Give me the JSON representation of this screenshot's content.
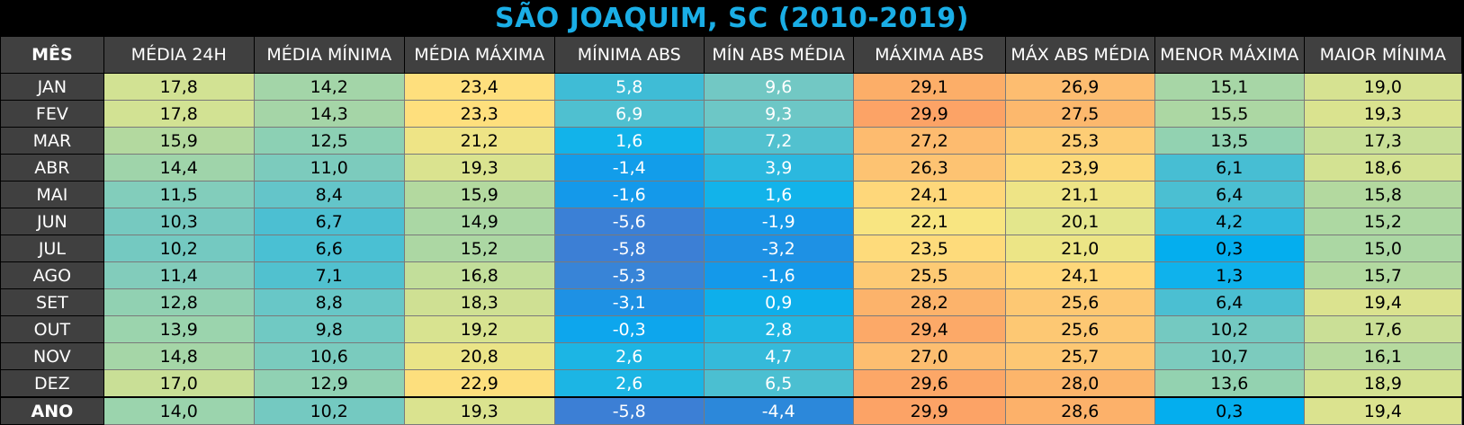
{
  "chart_data": {
    "type": "table",
    "title": "SÃO JOAQUIM, SC (2010-2019)",
    "columns": [
      "MÊS",
      "MÉDIA 24H",
      "MÉDIA MÍNIMA",
      "MÉDIA MÁXIMA",
      "MÍNIMA ABS",
      "MÍN ABS MÉDIA",
      "MÁXIMA ABS",
      "MÁX ABS MÉDIA",
      "MENOR MÁXIMA",
      "MAIOR MÍNIMA"
    ],
    "rows": [
      {
        "mes": "JAN",
        "values": [
          "17,8",
          "14,2",
          "23,4",
          "5,8",
          "9,6",
          "29,1",
          "26,9",
          "15,1",
          "19,0"
        ],
        "colors": [
          "#d2e293",
          "#a3d5a8",
          "#fedf7d",
          "#3fbcd6",
          "#72c8c4",
          "#fcae68",
          "#fdbd70",
          "#a7d6a6",
          "#d6e291"
        ]
      },
      {
        "mes": "FEV",
        "values": [
          "17,8",
          "14,3",
          "23,3",
          "6,9",
          "9,3",
          "29,9",
          "27,5",
          "15,5",
          "19,3"
        ],
        "colors": [
          "#d2e293",
          "#a5d5a7",
          "#fedf7d",
          "#4fc0d0",
          "#6dc7c6",
          "#fca366",
          "#fcb86d",
          "#acd7a3",
          "#dae38f"
        ]
      },
      {
        "mes": "MAR",
        "values": [
          "15,9",
          "12,5",
          "21,2",
          "1,6",
          "7,2",
          "27,2",
          "25,3",
          "13,5",
          "17,3"
        ],
        "colors": [
          "#b3d99f",
          "#8cd0b4",
          "#eee486",
          "#12b3ea",
          "#52c1cf",
          "#fdbb6f",
          "#fdcd75",
          "#92d2b1",
          "#c8df97"
        ]
      },
      {
        "mes": "ABR",
        "values": [
          "14,4",
          "11,0",
          "19,3",
          "-1,4",
          "3,9",
          "26,3",
          "23,9",
          "6,1",
          "18,6"
        ],
        "colors": [
          "#9fd4aa",
          "#7ccbbd",
          "#dae38f",
          "#129dea",
          "#2bb8df",
          "#fdc372",
          "#fcd97a",
          "#47bed3",
          "#d3e292"
        ]
      },
      {
        "mes": "MAI",
        "values": [
          "11,5",
          "8,4",
          "15,9",
          "-1,6",
          "1,6",
          "24,1",
          "21,1",
          "6,4",
          "15,8"
        ],
        "colors": [
          "#82cdbb",
          "#64c5c9",
          "#b3d99f",
          "#1499ea",
          "#12b3ea",
          "#fed77a",
          "#eee486",
          "#4bbfd2",
          "#b3d99f"
        ]
      },
      {
        "mes": "JUN",
        "values": [
          "10,3",
          "6,7",
          "14,9",
          "-5,6",
          "-1,9",
          "22,1",
          "20,1",
          "4,2",
          "15,2"
        ],
        "colors": [
          "#76c9c0",
          "#4cbfd2",
          "#aad7a4",
          "#3b80d6",
          "#1799e8",
          "#f8e581",
          "#e3e68c",
          "#31b9dd",
          "#add8a2"
        ]
      },
      {
        "mes": "JUL",
        "values": [
          "10,2",
          "6,6",
          "15,2",
          "-5,8",
          "-3,2",
          "23,5",
          "21,0",
          "0,3",
          "15,0"
        ],
        "colors": [
          "#74c9c1",
          "#4ac0d3",
          "#acd7a3",
          "#3c7fd5",
          "#1e91e4",
          "#fedb7b",
          "#ece586",
          "#04aeee",
          "#abd7a3"
        ]
      },
      {
        "mes": "AGO",
        "values": [
          "11,4",
          "7,1",
          "16,8",
          "-5,3",
          "-1,6",
          "25,5",
          "24,1",
          "1,3",
          "15,7"
        ],
        "colors": [
          "#82ccbb",
          "#51c1cf",
          "#c2de9a",
          "#3884d7",
          "#1499ea",
          "#fdca74",
          "#fed77a",
          "#0fb2ec",
          "#b2d9a0"
        ]
      },
      {
        "mes": "SET",
        "values": [
          "12,8",
          "8,8",
          "18,3",
          "-3,1",
          "0,9",
          "28,2",
          "25,6",
          "6,4",
          "19,4"
        ],
        "colors": [
          "#91d1b2",
          "#68c7c7",
          "#cfe093",
          "#1e91e4",
          "#0eafeb",
          "#fcb36b",
          "#fdc873",
          "#4bbfd2",
          "#dbe38f"
        ]
      },
      {
        "mes": "OUT",
        "values": [
          "13,9",
          "9,8",
          "19,2",
          "-0,3",
          "2,8",
          "29,4",
          "25,6",
          "10,2",
          "17,6"
        ],
        "colors": [
          "#9bd4ad",
          "#70c9c3",
          "#d8e390",
          "#0da6ed",
          "#20b6e3",
          "#fca968",
          "#fdc873",
          "#74c9c1",
          "#cadf96"
        ]
      },
      {
        "mes": "NOV",
        "values": [
          "14,8",
          "10,6",
          "20,8",
          "2,6",
          "4,7",
          "27,0",
          "25,7",
          "10,7",
          "16,1"
        ],
        "colors": [
          "#a5d6a7",
          "#7acbbe",
          "#eae487",
          "#1cb5e4",
          "#35bada",
          "#fdbe70",
          "#fdc773",
          "#7ccbbe",
          "#b6da9e"
        ]
      },
      {
        "mes": "DEZ",
        "values": [
          "17,0",
          "12,9",
          "22,9",
          "2,6",
          "6,5",
          "29,6",
          "28,0",
          "13,6",
          "18,9"
        ],
        "colors": [
          "#c9df96",
          "#90d1b3",
          "#fddf7d",
          "#1cb5e4",
          "#4bbfd1",
          "#fca767",
          "#fcb56b",
          "#93d2b0",
          "#d4e291"
        ]
      }
    ],
    "summary": {
      "mes": "ANO",
      "values": [
        "14,0",
        "10,2",
        "19,3",
        "-5,8",
        "-4,4",
        "29,9",
        "28,6",
        "0,3",
        "19,4"
      ],
      "colors": [
        "#9bd4ad",
        "#74c9c1",
        "#dae38f",
        "#3c7fd5",
        "#2c88da",
        "#fca366",
        "#fcb16a",
        "#04aeee",
        "#dbe38f"
      ]
    },
    "light_text_columns": [
      3,
      4
    ]
  }
}
